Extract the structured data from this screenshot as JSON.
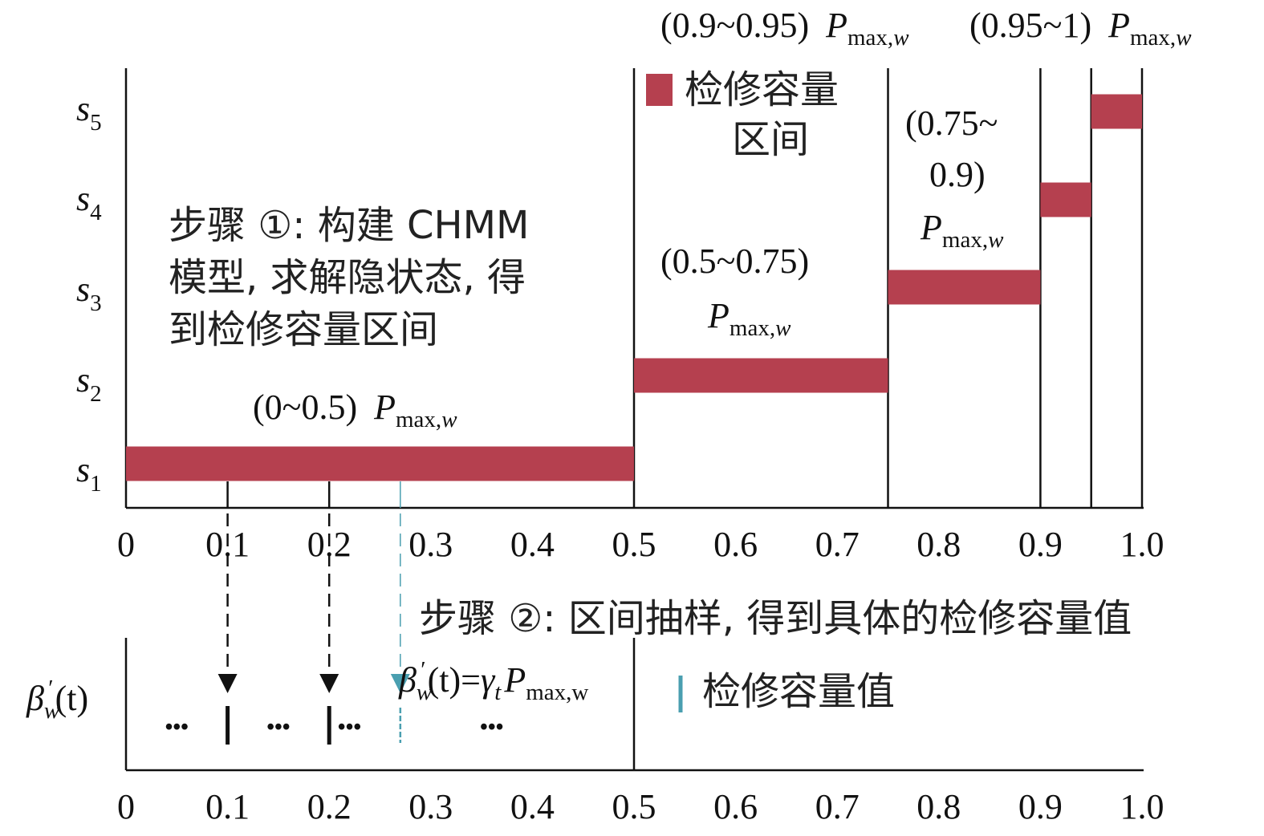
{
  "colors": {
    "bar": "#b5404f",
    "accent": "#4a9fb0",
    "line": "#111111"
  },
  "top_chart": {
    "y_labels": [
      {
        "base": "s",
        "sub": "1"
      },
      {
        "base": "s",
        "sub": "2"
      },
      {
        "base": "s",
        "sub": "3"
      },
      {
        "base": "s",
        "sub": "4"
      },
      {
        "base": "s",
        "sub": "5"
      }
    ],
    "x_ticks": [
      "0",
      "0.1",
      "0.2",
      "0.3",
      "0.4",
      "0.5",
      "0.6",
      "0.7",
      "0.8",
      "0.9",
      "1.0"
    ],
    "boundaries": [
      0.5,
      0.75,
      0.9,
      0.95,
      1.0
    ],
    "intervals": [
      {
        "state": 1,
        "from": 0,
        "to": 0.5,
        "range": "(0~0.5)"
      },
      {
        "state": 2,
        "from": 0.5,
        "to": 0.75,
        "range": "(0.5~0.75)"
      },
      {
        "state": 3,
        "from": 0.75,
        "to": 0.9,
        "range_line1": "(0.75~",
        "range_line2": "0.9)"
      },
      {
        "state": 4,
        "from": 0.9,
        "to": 0.95,
        "range": "(0.9~0.95)"
      },
      {
        "state": 5,
        "from": 0.95,
        "to": 1.0,
        "range": "(0.95~1)"
      }
    ],
    "pmax": {
      "base": "P",
      "sub": "max,",
      "sub_var": "w"
    },
    "legend": {
      "line1": "检修容量",
      "line2": "区间"
    },
    "step1": {
      "line1": "步骤 ①: 构建 CHMM",
      "line2": "模型, 求解隐状态, 得",
      "line3": "到检修容量区间"
    }
  },
  "step2": {
    "text": "步骤 ②: 区间抽样, 得到具体的检修容量值"
  },
  "bottom_chart": {
    "y_label": {
      "base": "β",
      "sub": "w",
      "prime": "′",
      "arg": "(t)"
    },
    "x_ticks": [
      "0",
      "0.1",
      "0.2",
      "0.3",
      "0.4",
      "0.5",
      "0.6",
      "0.7",
      "0.8",
      "0.9",
      "1.0"
    ],
    "samples": [
      0.1,
      0.2,
      0.27
    ],
    "highlighted_sample": 0.27,
    "ellipsis": "•••",
    "formula": {
      "beta": "β",
      "sub_w": "w",
      "prime": "′",
      "t": "(t)=",
      "gamma": "γ",
      "sub_t": "t",
      "P": "P",
      "pmax_sub": "max,w"
    },
    "legend": "检修容量值"
  }
}
